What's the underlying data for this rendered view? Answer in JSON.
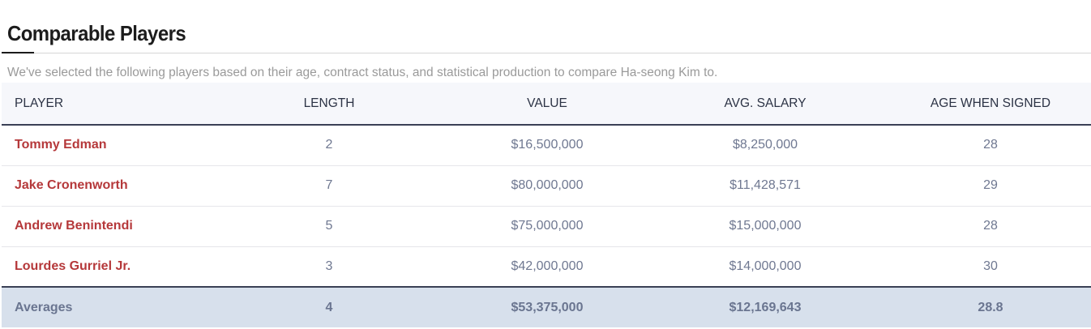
{
  "section": {
    "title": "Comparable Players",
    "description": "We've selected the following players based on their age, contract status, and statistical production to compare Ha-seong Kim to."
  },
  "table": {
    "headers": [
      "PLAYER",
      "LENGTH",
      "VALUE",
      "AVG. SALARY",
      "AGE WHEN SIGNED"
    ],
    "rows": [
      {
        "player": "Tommy Edman",
        "length": "2",
        "value": "$16,500,000",
        "avg_salary": "$8,250,000",
        "age": "28"
      },
      {
        "player": "Jake Cronenworth",
        "length": "7",
        "value": "$80,000,000",
        "avg_salary": "$11,428,571",
        "age": "29"
      },
      {
        "player": "Andrew Benintendi",
        "length": "5",
        "value": "$75,000,000",
        "avg_salary": "$15,000,000",
        "age": "28"
      },
      {
        "player": "Lourdes Gurriel Jr.",
        "length": "3",
        "value": "$42,000,000",
        "avg_salary": "$14,000,000",
        "age": "30"
      }
    ],
    "averages": {
      "label": "Averages",
      "length": "4",
      "value": "$53,375,000",
      "avg_salary": "$12,169,643",
      "age": "28.8"
    }
  },
  "colors": {
    "player_link": "#b5383a",
    "header_bg": "#f6f7fb",
    "averages_bg": "#d7e0ec",
    "body_text": "#6f7891"
  }
}
